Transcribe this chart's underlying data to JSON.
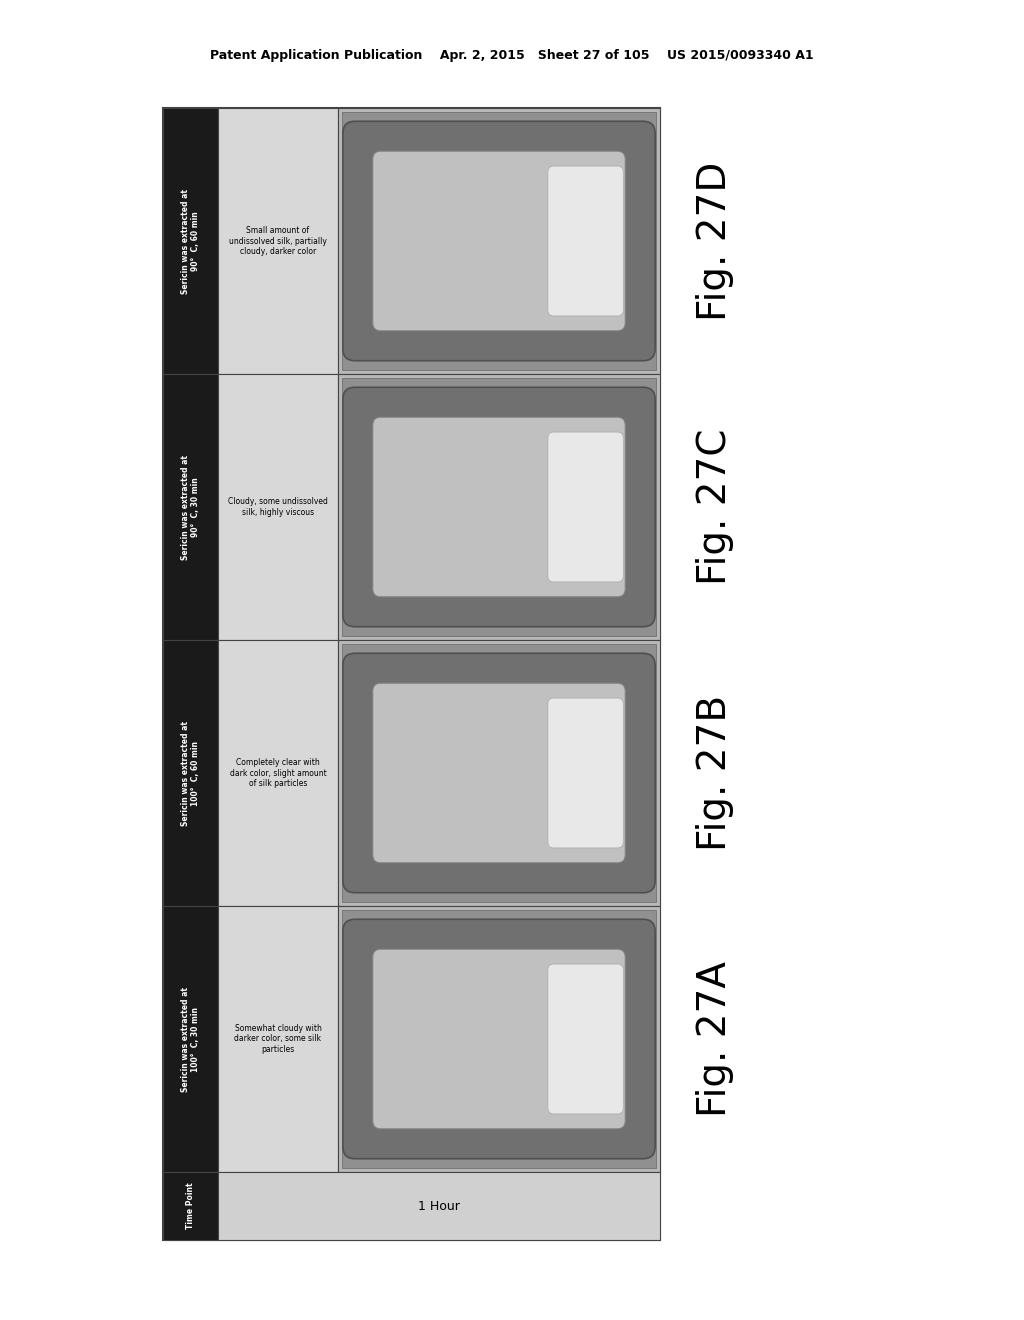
{
  "header_text": "Patent Application Publication    Apr. 2, 2015   Sheet 27 of 105    US 2015/0093340 A1",
  "fig_labels": [
    "Fig. 27D",
    "Fig. 27C",
    "Fig. 27B",
    "Fig. 27A"
  ],
  "row_headers": [
    "Sericin was extracted at\n90°  C, 60 min",
    "Sericin was extracted at\n90°  C, 30 min",
    "Sericin was extracted at\n100°  C, 60 min",
    "Sericin was extracted at\n100°  C, 30 min"
  ],
  "descriptions": [
    "Small amount of\nundissolved silk, partially\ncloudy, darker color",
    "Cloudy, some undissolved\nsilk, highly viscous",
    "Completely clear with\ndark color, slight amount\nof silk particles",
    "Somewhat cloudy with\ndarker color, some silk\nparticles"
  ],
  "time_point_label": "Time Point",
  "time_point_value": "1 Hour",
  "bg_color": "#ffffff",
  "table_outer_bg": "#c8c8c8",
  "header_bg": "#1a1a1a",
  "header_text_color": "#ffffff",
  "desc_bg": "#d8d8d8",
  "image_area_bg": "#c0c0c0",
  "border_color": "#444444",
  "time_row_bg": "#d0d0d0",
  "time_header_bg": "#1a1a1a"
}
